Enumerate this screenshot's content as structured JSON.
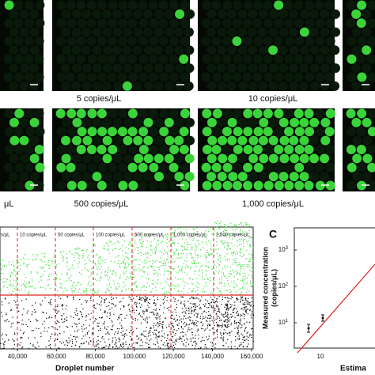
{
  "panels": {
    "images_row1_labels": [
      "5 copies/μL",
      "10 copies/μL"
    ],
    "images_row2_labels": [
      "μL",
      "500 copies/μL",
      "1,000 copies/μL"
    ],
    "scatter": {
      "segment_labels": [
        "s/μL",
        "10 copies/μL",
        "50 copies/μL",
        "100 copies/μL",
        "500 copies/μL",
        "1,000 copies/μL",
        "2,500 copies/μL"
      ],
      "xticks": [
        "40,000",
        "60,000",
        "80,000",
        "100,000",
        "120,000",
        "140,000",
        "160,000"
      ],
      "xlabel": "Droplet number"
    },
    "panel_c": {
      "letter": "C",
      "ylabel_line1": "Measured concentration",
      "ylabel_line2": "(copies/μL)",
      "yticks": [
        {
          "base": "10",
          "exp": "3"
        },
        {
          "base": "10",
          "exp": "2"
        },
        {
          "base": "10",
          "exp": "1"
        }
      ],
      "xtick": "10",
      "xlabel": "Estima"
    }
  }
}
